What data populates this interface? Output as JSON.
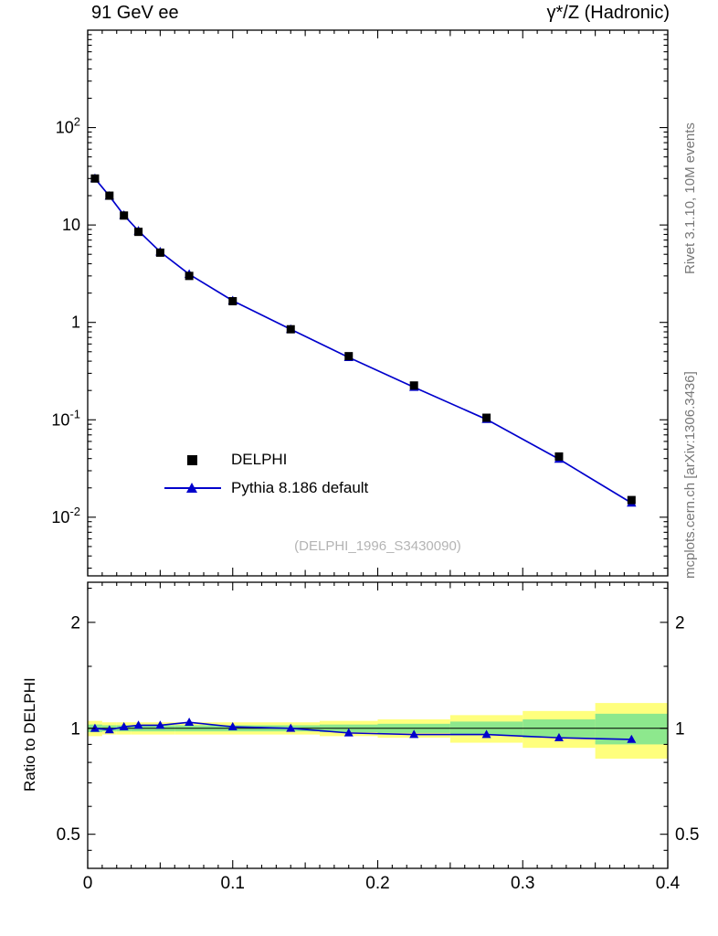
{
  "header": {
    "left": "91 GeV ee",
    "right": "γ*/Z (Hadronic)"
  },
  "side_labels": {
    "top_right": "Rivet 3.1.10,  10M events",
    "bottom_right": "mcplots.cern.ch [arXiv:1306.3436]"
  },
  "watermark": "(DELPHI_1996_S3430090)",
  "legend": {
    "items": [
      {
        "label": "DELPHI",
        "marker": "black-square"
      },
      {
        "label": "Pythia 8.186 default",
        "marker": "blue-triangle-line"
      }
    ]
  },
  "colors": {
    "mc": "#0000cc",
    "data": "#000000",
    "band_outer": "#ffff7d",
    "band_inner": "#8de88d",
    "gray_text": "#787878",
    "watermark_text": "#b4b4b4"
  },
  "chart_data": [
    {
      "type": "line",
      "panel": "main",
      "yscale": "log",
      "grid": false,
      "legend_position": "left-middle",
      "xlim": [
        0,
        0.4
      ],
      "ylim": [
        0.0025,
        1000
      ],
      "xticks": [
        0,
        0.1,
        0.2,
        0.3,
        0.4
      ],
      "ytick_decades": [
        2,
        1,
        0,
        -1,
        -2
      ],
      "series": [
        {
          "name": "DELPHI",
          "marker": "square",
          "color": "#000000",
          "x": [
            0.005,
            0.015,
            0.025,
            0.035,
            0.05,
            0.07,
            0.1,
            0.14,
            0.18,
            0.225,
            0.275,
            0.325,
            0.375
          ],
          "y": [
            30,
            20,
            12.5,
            8.5,
            5.2,
            3.0,
            1.65,
            0.85,
            0.45,
            0.225,
            0.105,
            0.042,
            0.015
          ]
        },
        {
          "name": "Pythia 8.186 default",
          "marker": "triangle",
          "color": "#0000cc",
          "x": [
            0.005,
            0.015,
            0.025,
            0.035,
            0.05,
            0.07,
            0.1,
            0.14,
            0.18,
            0.225,
            0.275,
            0.325,
            0.375
          ],
          "y": [
            30.0,
            19.8,
            12.6,
            8.7,
            5.3,
            3.12,
            1.67,
            0.85,
            0.437,
            0.216,
            0.101,
            0.0395,
            0.014
          ]
        }
      ]
    },
    {
      "type": "ratio",
      "panel": "bottom",
      "ylabel": "Ratio to DELPHI",
      "yscale": "log",
      "xlim": [
        0,
        0.4
      ],
      "ylim": [
        0.4,
        2.6
      ],
      "yticks": [
        2,
        1,
        0.5
      ],
      "bin_edges": [
        0,
        0.01,
        0.02,
        0.03,
        0.04,
        0.06,
        0.08,
        0.12,
        0.16,
        0.2,
        0.25,
        0.3,
        0.35,
        0.4
      ],
      "band_outer_halfwidth": [
        0.05,
        0.04,
        0.04,
        0.04,
        0.04,
        0.04,
        0.04,
        0.04,
        0.05,
        0.06,
        0.09,
        0.12,
        0.18
      ],
      "band_inner_halfwidth": [
        0.025,
        0.02,
        0.02,
        0.02,
        0.02,
        0.02,
        0.02,
        0.02,
        0.025,
        0.03,
        0.045,
        0.06,
        0.1
      ],
      "series": [
        {
          "name": "Pythia 8.186 default / DELPHI",
          "marker": "triangle",
          "color": "#0000cc",
          "x": [
            0.005,
            0.015,
            0.025,
            0.035,
            0.05,
            0.07,
            0.1,
            0.14,
            0.18,
            0.225,
            0.275,
            0.325,
            0.375
          ],
          "y": [
            1.0,
            0.99,
            1.01,
            1.02,
            1.02,
            1.04,
            1.01,
            1.0,
            0.97,
            0.96,
            0.96,
            0.94,
            0.93
          ]
        }
      ]
    }
  ]
}
